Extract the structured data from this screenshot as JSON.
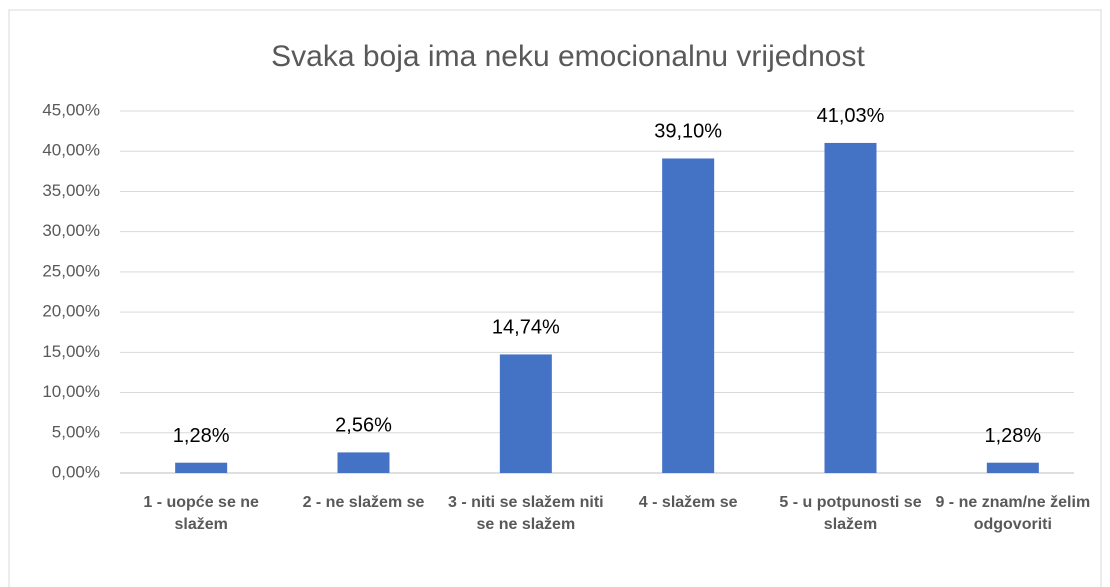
{
  "chart_data": {
    "type": "bar",
    "title": "Svaka boja ima neku emocionalnu vrijednost",
    "categories": [
      "1 - uopće se ne slažem",
      "2 - ne slažem se",
      "3 - niti se slažem niti se ne slažem",
      "4 - slažem se",
      "5 - u potpunosti se slažem",
      "9 - ne znam/ne želim odgovoriti"
    ],
    "values": [
      1.28,
      2.56,
      14.74,
      39.1,
      41.03,
      1.28
    ],
    "value_labels": [
      "1,28%",
      "2,56%",
      "14,74%",
      "39,10%",
      "41,03%",
      "1,28%"
    ],
    "color": "#4472c4",
    "ylim": [
      0,
      45
    ],
    "yticks": [
      {
        "value": 0,
        "label": "0,00%"
      },
      {
        "value": 5,
        "label": "5,00%"
      },
      {
        "value": 10,
        "label": "10,00%"
      },
      {
        "value": 15,
        "label": "15,00%"
      },
      {
        "value": 20,
        "label": "20,00%"
      },
      {
        "value": 25,
        "label": "25,00%"
      },
      {
        "value": 30,
        "label": "30,00%"
      },
      {
        "value": 35,
        "label": "35,00%"
      },
      {
        "value": 40,
        "label": "40,00%"
      },
      {
        "value": 45,
        "label": "45,00%"
      }
    ],
    "grid": true
  }
}
